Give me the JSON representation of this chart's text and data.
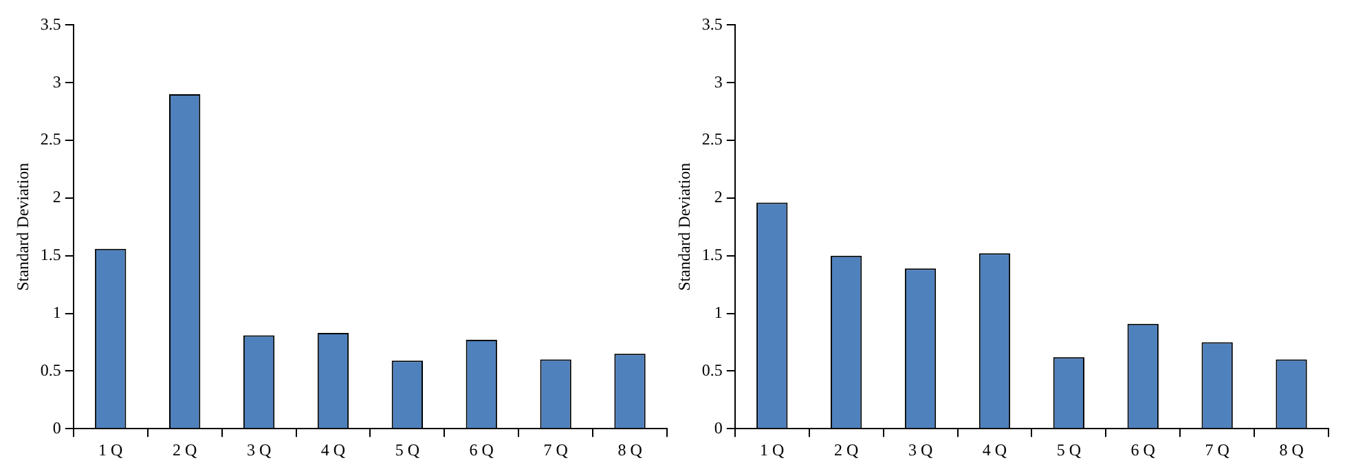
{
  "chart_data": [
    {
      "type": "bar",
      "categories": [
        "1 Q",
        "2 Q",
        "3 Q",
        "4 Q",
        "5 Q",
        "6 Q",
        "7 Q",
        "8 Q"
      ],
      "values": [
        1.56,
        2.9,
        0.81,
        0.83,
        0.59,
        0.77,
        0.6,
        0.65
      ],
      "color": "#4f81bd",
      "ylabel": "Standard Deviation",
      "ylim": [
        0,
        3.5
      ],
      "yticks": [
        0,
        0.5,
        1,
        1.5,
        2,
        2.5,
        3,
        3.5
      ],
      "grid": false,
      "legend": false
    },
    {
      "type": "bar",
      "categories": [
        "1 Q",
        "2 Q",
        "3 Q",
        "4 Q",
        "5 Q",
        "6 Q",
        "7 Q",
        "8 Q"
      ],
      "values": [
        1.96,
        1.5,
        1.39,
        1.52,
        0.62,
        0.91,
        0.75,
        0.6
      ],
      "color": "#4f81bd",
      "ylabel": "Standard Deviation",
      "ylim": [
        0,
        3.5
      ],
      "yticks": [
        0,
        0.5,
        1,
        1.5,
        2,
        2.5,
        3,
        3.5
      ],
      "grid": false,
      "legend": false
    }
  ]
}
